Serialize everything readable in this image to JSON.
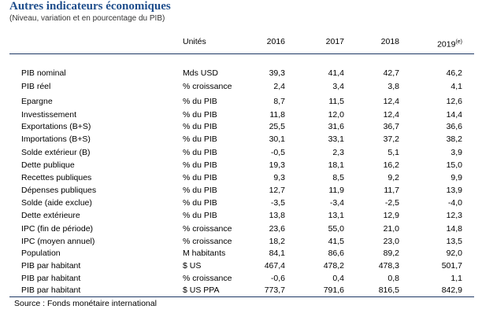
{
  "title": "Autres indicateurs économiques",
  "subtitle": "(Niveau, variation et en pourcentage du PIB)",
  "header": {
    "units": "Unités",
    "years": [
      "2016",
      "2017",
      "2018",
      "2019"
    ],
    "last_sup": "(e)"
  },
  "rows": [
    {
      "label": "PIB nominal",
      "unit": "Mds USD",
      "values": [
        "39,3",
        "41,4",
        "42,7",
        "46,2"
      ]
    },
    {
      "label": "PIB réel",
      "unit": "% croissance",
      "values": [
        "2,4",
        "3,4",
        "3,8",
        "4,1"
      ]
    },
    {
      "label": "Epargne",
      "unit": "% du PIB",
      "values": [
        "8,7",
        "11,5",
        "12,4",
        "12,6"
      ]
    },
    {
      "label": "Investissement",
      "unit": "% du PIB",
      "values": [
        "11,8",
        "12,0",
        "12,4",
        "14,4"
      ]
    },
    {
      "label": "Exportations (B+S)",
      "unit": "% du PIB",
      "values": [
        "25,5",
        "31,6",
        "36,7",
        "36,6"
      ]
    },
    {
      "label": "Importations (B+S)",
      "unit": "% du PIB",
      "values": [
        "30,1",
        "33,1",
        "37,2",
        "38,2"
      ]
    },
    {
      "label": "Solde extérieur (B)",
      "unit": "% du PIB",
      "values": [
        "-0,5",
        "2,3",
        "5,1",
        "3,9"
      ]
    },
    {
      "label": "Dette publique",
      "unit": "% du PIB",
      "values": [
        "19,3",
        "18,1",
        "16,2",
        "15,0"
      ]
    },
    {
      "label": "Recettes publiques",
      "unit": "% du PIB",
      "values": [
        "9,3",
        "8,5",
        "9,2",
        "9,9"
      ]
    },
    {
      "label": "Dépenses  publiques",
      "unit": "% du PIB",
      "values": [
        "12,7",
        "11,9",
        "11,7",
        "13,9"
      ]
    },
    {
      "label": "Solde (aide exclue)",
      "unit": "% du PIB",
      "values": [
        "-3,5",
        "-3,4",
        "-2,5",
        "-4,0"
      ]
    },
    {
      "label": "Dette extérieure",
      "unit": "% du PIB",
      "values": [
        "13,8",
        "13,1",
        "12,9",
        "12,3"
      ]
    },
    {
      "label": "IPC (fin de période)",
      "unit": "% croissance",
      "values": [
        "23,6",
        "55,0",
        "21,0",
        "14,8"
      ]
    },
    {
      "label": "IPC (moyen annuel)",
      "unit": "% croissance",
      "values": [
        "18,2",
        "41,5",
        "23,0",
        "13,5"
      ]
    },
    {
      "label": " Population",
      "unit": "M habitants",
      "values": [
        "84,1",
        "86,6",
        "89,2",
        "92,0"
      ]
    },
    {
      "label": "PIB par habitant",
      "unit": "$ US",
      "values": [
        "467,4",
        "478,2",
        "478,3",
        "501,7"
      ]
    },
    {
      "label": "PIB par habitant",
      "unit": "% croissance",
      "values": [
        "-0,6",
        "0,4",
        "0,8",
        "1,1"
      ]
    },
    {
      "label": "PIB par habitant",
      "unit": "$ US PPA",
      "values": [
        "773,7",
        "791,6",
        "816,5",
        "842,9"
      ]
    }
  ],
  "source": "Source :  Fonds monétaire international"
}
